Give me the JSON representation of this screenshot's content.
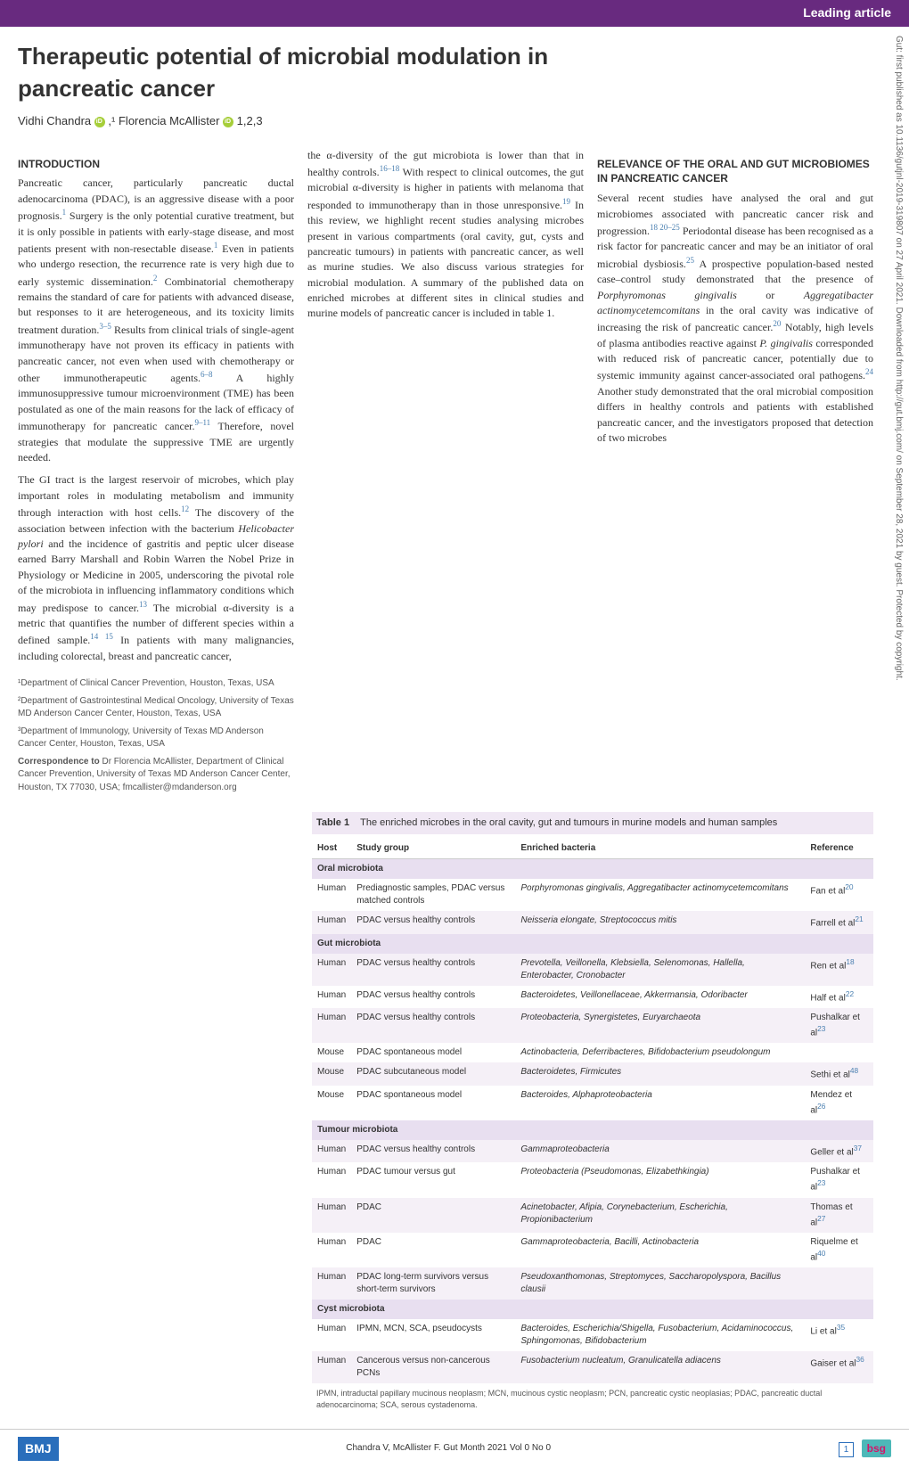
{
  "header": {
    "label": "Leading article"
  },
  "watermark": "Gut: first published as 10.1136/gutjnl-2019-319807 on 27 April 2021. Downloaded from http://gut.bmj.com/ on September 28, 2021 by guest. Protected by copyright.",
  "title": "Therapeutic potential of microbial modulation in pancreatic cancer",
  "authors": {
    "a1": "Vidhi Chandra",
    "a1sup": ",¹",
    "a2": "Florencia McAllister",
    "a2sup": " 1,2,3"
  },
  "section1": {
    "heading": "INTRODUCTION",
    "p1a": "Pancreatic cancer, particularly pancreatic ductal adenocarcinoma (PDAC), is an aggressive disease with a poor prognosis.",
    "p1b": " Surgery is the only potential curative treatment, but it is only possible in patients with early-stage disease, and most patients present with non-resectable disease.",
    "p1c": " Even in patients who undergo resection, the recurrence rate is very high due to early systemic dissemination.",
    "p1d": " Combinatorial chemotherapy remains the standard of care for patients with advanced disease, but responses to it are heterogeneous, and its toxicity limits treatment duration.",
    "p1e": " Results from clinical trials of single-agent immunotherapy have not proven its efficacy in patients with pancreatic cancer, not even when used with chemotherapy or other immunotherapeutic agents.",
    "p1f": " A highly immunosuppressive tumour microenvironment (TME) has been postulated as one of the main reasons for the lack of efficacy of immunotherapy for pancreatic cancer.",
    "p1g": " Therefore, novel strategies that modulate the suppressive TME are urgently needed.",
    "p2a": "The GI tract is the largest reservoir of microbes, which play important roles in modulating metabolism and immunity through interaction with host cells.",
    "p2b": " The discovery of the association between infection with the bacterium ",
    "p2b_it": "Helicobacter pylori",
    "p2c": " and the incidence of gastritis and peptic ulcer disease earned Barry Marshall and Robin Warren the Nobel Prize in Physiology or Medicine in 2005, underscoring the pivotal role of the microbiota in influencing inflammatory conditions which may predispose to cancer.",
    "p2d": " The microbial α-diversity is a metric that quantifies the number of different species within a defined sample.",
    "p2e": " In patients with many malignancies, including colorectal, breast and pancreatic cancer,",
    "p3a": "the α-diversity of the gut microbiota is lower than that in healthy controls.",
    "p3b": " With respect to clinical outcomes, the gut microbial α-diversity is higher in patients with melanoma that responded to immunotherapy than in those unresponsive.",
    "p3c": " In this review, we highlight recent studies analysing microbes present in various compartments (oral cavity, gut, cysts and pancreatic tumours) in patients with pancreatic cancer, as well as murine studies. We also discuss various strategies for microbial modulation. A summary of the published data on enriched microbes at different sites in clinical studies and murine models of pancreatic cancer is included in table 1."
  },
  "section2": {
    "heading": "RELEVANCE OF THE ORAL AND GUT MICROBIOMES IN PANCREATIC CANCER",
    "p1a": "Several recent studies have analysed the oral and gut microbiomes associated with pancreatic cancer risk and progression.",
    "p1b": " Periodontal disease has been recognised as a risk factor for pancreatic cancer and may be an initiator of oral microbial dysbiosis.",
    "p1c": " A prospective population-based nested case–control study demonstrated that the presence of ",
    "p1c_it1": "Porphyromonas gingivalis",
    "p1c_or": " or ",
    "p1c_it2": "Aggregatibacter actinomycetemcomitans",
    "p1d": " in the oral cavity was indicative of increasing the risk of pancreatic cancer.",
    "p1e": " Notably, high levels of plasma antibodies reactive against ",
    "p1e_it": "P. gingivalis",
    "p1f": " corresponded with reduced risk of pancreatic cancer, potentially due to systemic immunity against cancer-associated oral pathogens.",
    "p1g": " Another study demonstrated that the oral microbial composition differs in healthy controls and patients with established pancreatic cancer, and the investigators proposed that detection of two microbes"
  },
  "refs": {
    "r1": "1",
    "r2": "2",
    "r3_5": "3–5",
    "r6_8": "6–8",
    "r9_11": "9–11",
    "r12": "12",
    "r13": "13",
    "r14_15": "14 15",
    "r16_18": "16–18",
    "r19": "19",
    "r18_20_25": "18 20–25",
    "r25": "25",
    "r20": "20",
    "r24": "24"
  },
  "table": {
    "title_label": "Table 1",
    "title_text": "The enriched microbes in the oral cavity, gut and tumours in murine models and human samples",
    "headers": {
      "h1": "Host",
      "h2": "Study group",
      "h3": "Enriched bacteria",
      "h4": "Reference"
    },
    "sections": {
      "oral": "Oral microbiota",
      "gut": "Gut microbiota",
      "tumour": "Tumour microbiota",
      "cyst": "Cyst microbiota"
    },
    "rows": [
      {
        "host": "Human",
        "group": "Prediagnostic samples, PDAC versus matched controls",
        "bacteria": "Porphyromonas gingivalis, Aggregatibacter actinomycetemcomitans",
        "ref": "Fan et al",
        "refnum": "20"
      },
      {
        "host": "Human",
        "group": "PDAC versus healthy controls",
        "bacteria": "Neisseria elongate, Streptococcus mitis",
        "ref": "Farrell et al",
        "refnum": "21"
      },
      {
        "host": "Human",
        "group": "PDAC versus healthy controls",
        "bacteria": "Prevotella, Veillonella, Klebsiella, Selenomonas, Hallella, Enterobacter, Cronobacter",
        "ref": "Ren et al",
        "refnum": "18"
      },
      {
        "host": "Human",
        "group": "PDAC versus healthy controls",
        "bacteria": "Bacteroidetes, Veillonellaceae, Akkermansia, Odoribacter",
        "ref": "Half et al",
        "refnum": "22"
      },
      {
        "host": "Human",
        "group": "PDAC versus healthy controls",
        "bacteria": "Proteobacteria, Synergistetes, Euryarchaeota",
        "ref": "Pushalkar et al",
        "refnum": "23"
      },
      {
        "host": "Mouse",
        "group": "PDAC spontaneous model",
        "bacteria": "Actinobacteria, Deferribacteres, Bifidobacterium pseudolongum",
        "ref": "",
        "refnum": ""
      },
      {
        "host": "Mouse",
        "group": "PDAC subcutaneous model",
        "bacteria": "Bacteroidetes, Firmicutes",
        "ref": "Sethi et al",
        "refnum": "48"
      },
      {
        "host": "Mouse",
        "group": "PDAC spontaneous model",
        "bacteria": "Bacteroides, Alphaproteobacteria",
        "ref": "Mendez et al",
        "refnum": "26"
      },
      {
        "host": "Human",
        "group": "PDAC versus healthy controls",
        "bacteria": "Gammaproteobacteria",
        "ref": "Geller et al",
        "refnum": "37"
      },
      {
        "host": "Human",
        "group": "PDAC tumour versus gut",
        "bacteria": "Proteobacteria (Pseudomonas, Elizabethkingia)",
        "ref": "Pushalkar et al",
        "refnum": "23"
      },
      {
        "host": "Human",
        "group": "PDAC",
        "bacteria": "Acinetobacter, Afipia, Corynebacterium, Escherichia, Propionibacterium",
        "ref": "Thomas et al",
        "refnum": "27"
      },
      {
        "host": "Human",
        "group": "PDAC",
        "bacteria": "Gammaproteobacteria, Bacilli, Actinobacteria",
        "ref": "Riquelme et al",
        "refnum": "40"
      },
      {
        "host": "Human",
        "group": "PDAC long-term survivors versus short-term survivors",
        "bacteria": "Pseudoxanthomonas, Streptomyces, Saccharopolyspora, Bacillus clausii",
        "ref": "",
        "refnum": ""
      },
      {
        "host": "Human",
        "group": "IPMN, MCN, SCA, pseudocysts",
        "bacteria": "Bacteroides, Escherichia/Shigella, Fusobacterium, Acidaminococcus, Sphingomonas, Bifidobacterium",
        "ref": "Li et al",
        "refnum": "35"
      },
      {
        "host": "Human",
        "group": "Cancerous versus non-cancerous PCNs",
        "bacteria": "Fusobacterium nucleatum, Granulicatella adiacens",
        "ref": "Gaiser et al",
        "refnum": "36"
      }
    ],
    "footer": "IPMN, intraductal papillary mucinous neoplasm; MCN, mucinous cystic neoplasm; PCN, pancreatic cystic neoplasias; PDAC, pancreatic ductal adenocarcinoma; SCA, serous cystadenoma."
  },
  "affiliations": {
    "a1": "¹Department of Clinical Cancer Prevention, Houston, Texas, USA",
    "a2": "²Department of Gastrointestinal Medical Oncology, University of Texas MD Anderson Cancer Center, Houston, Texas, USA",
    "a3": "³Department of Immunology, University of Texas MD Anderson Cancer Center, Houston, Texas, USA",
    "corr_label": "Correspondence to ",
    "corr_text": "Dr Florencia McAllister, Department of Clinical Cancer Prevention, University of Texas MD Anderson Cancer Center, Houston, TX 77030, USA; fmcallister@mdanderson.org"
  },
  "footer": {
    "bmj": "BMJ",
    "citation": "Chandra V, McAllister F. Gut Month 2021 Vol 0 No 0",
    "page": "1",
    "bsg": "bsg"
  }
}
